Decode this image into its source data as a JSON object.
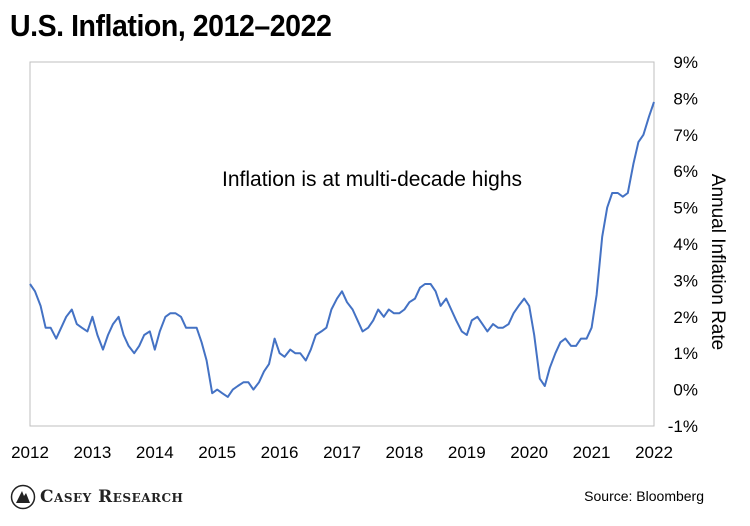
{
  "header": {
    "title": "U.S. Inflation, 2012–2022"
  },
  "footer": {
    "logo_text": "Casey Research",
    "source": "Source: Bloomberg"
  },
  "chart_data": {
    "type": "line",
    "title": "U.S. Inflation, 2012–2022",
    "xlabel": "",
    "ylabel": "Annual Inflation Rate",
    "annotation": "Inflation is at multi-decade highs",
    "xlim": [
      2012,
      2022
    ],
    "ylim": [
      -1,
      9
    ],
    "x_ticks": [
      "2012",
      "2013",
      "2014",
      "2015",
      "2016",
      "2017",
      "2018",
      "2019",
      "2020",
      "2021",
      "2022"
    ],
    "y_ticks": [
      "-1%",
      "0%",
      "1%",
      "2%",
      "3%",
      "4%",
      "5%",
      "6%",
      "7%",
      "8%",
      "9%"
    ],
    "y_axis_side": "right",
    "grid": false,
    "line_color": "#4472c4",
    "series": [
      {
        "name": "",
        "x": [
          2012.0,
          2012.08,
          2012.17,
          2012.25,
          2012.33,
          2012.42,
          2012.5,
          2012.58,
          2012.67,
          2012.75,
          2012.83,
          2012.92,
          2013.0,
          2013.08,
          2013.17,
          2013.25,
          2013.33,
          2013.42,
          2013.5,
          2013.58,
          2013.67,
          2013.75,
          2013.83,
          2013.92,
          2014.0,
          2014.08,
          2014.17,
          2014.25,
          2014.33,
          2014.42,
          2014.5,
          2014.58,
          2014.67,
          2014.75,
          2014.83,
          2014.92,
          2015.0,
          2015.08,
          2015.17,
          2015.25,
          2015.33,
          2015.42,
          2015.5,
          2015.58,
          2015.67,
          2015.75,
          2015.83,
          2015.92,
          2016.0,
          2016.08,
          2016.17,
          2016.25,
          2016.33,
          2016.42,
          2016.5,
          2016.58,
          2016.67,
          2016.75,
          2016.83,
          2016.92,
          2017.0,
          2017.08,
          2017.17,
          2017.25,
          2017.33,
          2017.42,
          2017.5,
          2017.58,
          2017.67,
          2017.75,
          2017.83,
          2017.92,
          2018.0,
          2018.08,
          2018.17,
          2018.25,
          2018.33,
          2018.42,
          2018.5,
          2018.58,
          2018.67,
          2018.75,
          2018.83,
          2018.92,
          2019.0,
          2019.08,
          2019.17,
          2019.25,
          2019.33,
          2019.42,
          2019.5,
          2019.58,
          2019.67,
          2019.75,
          2019.83,
          2019.92,
          2020.0,
          2020.08,
          2020.17,
          2020.25,
          2020.33,
          2020.42,
          2020.5,
          2020.58,
          2020.67,
          2020.75,
          2020.83,
          2020.92,
          2021.0,
          2021.08,
          2021.17,
          2021.25,
          2021.33,
          2021.42,
          2021.5,
          2021.58,
          2021.67,
          2021.75,
          2021.83,
          2021.92,
          2022.0
        ],
        "y": [
          2.9,
          2.7,
          2.3,
          1.7,
          1.7,
          1.4,
          1.7,
          2.0,
          2.2,
          1.8,
          1.7,
          1.6,
          2.0,
          1.5,
          1.1,
          1.5,
          1.8,
          2.0,
          1.5,
          1.2,
          1.0,
          1.2,
          1.5,
          1.6,
          1.1,
          1.6,
          2.0,
          2.1,
          2.1,
          2.0,
          1.7,
          1.7,
          1.7,
          1.3,
          0.8,
          -0.1,
          0.0,
          -0.1,
          -0.2,
          0.0,
          0.1,
          0.2,
          0.2,
          0.0,
          0.2,
          0.5,
          0.7,
          1.4,
          1.0,
          0.9,
          1.1,
          1.0,
          1.0,
          0.8,
          1.1,
          1.5,
          1.6,
          1.7,
          2.2,
          2.5,
          2.7,
          2.4,
          2.2,
          1.9,
          1.6,
          1.7,
          1.9,
          2.2,
          2.0,
          2.2,
          2.1,
          2.1,
          2.2,
          2.4,
          2.5,
          2.8,
          2.9,
          2.9,
          2.7,
          2.3,
          2.5,
          2.2,
          1.9,
          1.6,
          1.5,
          1.9,
          2.0,
          1.8,
          1.6,
          1.8,
          1.7,
          1.7,
          1.8,
          2.1,
          2.3,
          2.5,
          2.3,
          1.5,
          0.3,
          0.1,
          0.6,
          1.0,
          1.3,
          1.4,
          1.2,
          1.2,
          1.4,
          1.4,
          1.7,
          2.6,
          4.2,
          5.0,
          5.4,
          5.4,
          5.3,
          5.4,
          6.2,
          6.8,
          7.0,
          7.5,
          7.9
        ]
      }
    ]
  }
}
